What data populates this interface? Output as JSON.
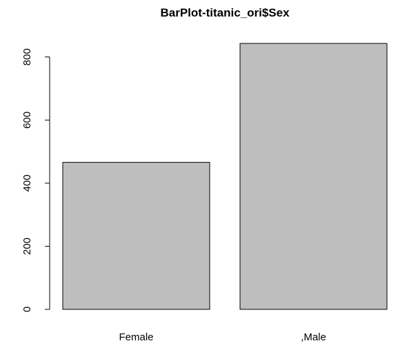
{
  "chart_data": {
    "type": "bar",
    "title": "BarPlot-titanic_ori$Sex",
    "xlabel": "",
    "ylabel": "",
    "categories": [
      "Female",
      ",Male"
    ],
    "values": [
      466,
      843
    ],
    "ylim": [
      0,
      843
    ],
    "yticks": [
      0,
      200,
      400,
      600,
      800
    ],
    "ytick_labels": [
      "0",
      "200",
      "400",
      "600",
      "800"
    ],
    "grid": false,
    "legend": "none",
    "colors": {
      "bar_fill": "#bebebe",
      "bar_stroke": "#000000",
      "axis": "#000000",
      "background": "#ffffff"
    }
  }
}
